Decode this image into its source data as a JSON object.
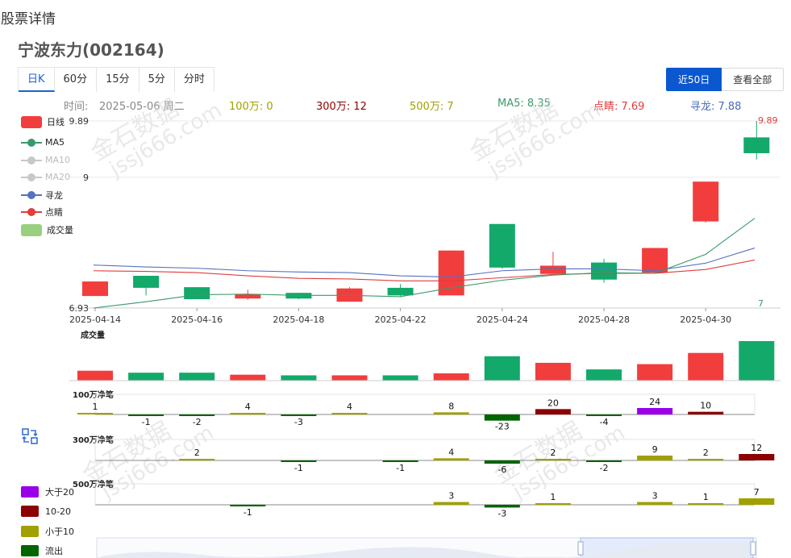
{
  "page": {
    "title": "股票详情",
    "stock_title": "宁波东力(002164)"
  },
  "period_tabs": [
    "日K",
    "60分",
    "15分",
    "5分",
    "分时"
  ],
  "range_buttons": [
    "近50日",
    "查看全部"
  ],
  "info_bar": {
    "time_label": "时间:",
    "time_value": "2025-05-06 周二",
    "items": [
      {
        "text": "100万: 0",
        "color": "#a0a000"
      },
      {
        "text": "300万: 12",
        "color": "#8b0000"
      },
      {
        "text": "500万: 7",
        "color": "#a0a000"
      },
      {
        "text": "MA5: 8.35",
        "color": "#3a9a6a"
      },
      {
        "text": "点睛: 7.69",
        "color": "#e03c3c"
      },
      {
        "text": "寻龙: 7.88",
        "color": "#4a6ab8"
      }
    ]
  },
  "legend": [
    {
      "label": "日线",
      "type": "rect",
      "color": "#f23d3d",
      "dim": false
    },
    {
      "label": "MA5",
      "type": "line",
      "color": "#3a9a6a",
      "dim": false
    },
    {
      "label": "MA10",
      "type": "line",
      "color": "#c0c0c0",
      "dim": true
    },
    {
      "label": "MA20",
      "type": "line",
      "color": "#c0c0c0",
      "dim": true
    },
    {
      "label": "寻龙",
      "type": "line",
      "color": "#5572c0",
      "dim": false
    },
    {
      "label": "点睛",
      "type": "line",
      "color": "#e03c3c",
      "dim": false
    },
    {
      "label": "成交量",
      "type": "rect",
      "color": "#98d07e",
      "dim": false
    }
  ],
  "flow_legend": [
    {
      "label": "大于20",
      "color": "#9a00e8"
    },
    {
      "label": "10-20",
      "color": "#8b0000"
    },
    {
      "label": "小于10",
      "color": "#a0a000"
    },
    {
      "label": "流出",
      "color": "#006400"
    }
  ],
  "watermark": "金石数据 jssj666.com",
  "chart_data": {
    "type": "candlestick",
    "price_axis": {
      "min": 6.93,
      "max": 9.89,
      "labels": [
        "9.89",
        "9",
        "6.93"
      ],
      "left_max_label": "9.89",
      "right_max_label": "9.89",
      "right_min_label": "7"
    },
    "x_labels": [
      "2025-04-14",
      "2025-04-16",
      "2025-04-18",
      "2025-04-22",
      "2025-04-24",
      "2025-04-28",
      "2025-04-30"
    ],
    "candles": [
      {
        "o": 7.35,
        "c": 7.12,
        "h": 7.35,
        "l": 7.12,
        "up": true
      },
      {
        "o": 7.25,
        "c": 7.44,
        "h": 7.44,
        "l": 7.13,
        "up": false
      },
      {
        "o": 7.07,
        "c": 7.26,
        "h": 7.26,
        "l": 7.07,
        "up": false
      },
      {
        "o": 7.15,
        "c": 7.08,
        "h": 7.22,
        "l": 7.06,
        "up": true
      },
      {
        "o": 7.08,
        "c": 7.17,
        "h": 7.17,
        "l": 7.07,
        "up": false
      },
      {
        "o": 7.24,
        "c": 7.03,
        "h": 7.26,
        "l": 7.03,
        "up": true
      },
      {
        "o": 7.25,
        "c": 7.13,
        "h": 7.31,
        "l": 7.11,
        "up": false
      },
      {
        "o": 7.84,
        "c": 7.13,
        "h": 7.84,
        "l": 7.13,
        "up": true
      },
      {
        "o": 7.57,
        "c": 8.26,
        "h": 8.26,
        "l": 7.55,
        "up": false
      },
      {
        "o": 7.6,
        "c": 7.47,
        "h": 7.82,
        "l": 7.47,
        "up": true
      },
      {
        "o": 7.38,
        "c": 7.65,
        "h": 7.71,
        "l": 7.33,
        "up": false
      },
      {
        "o": 7.88,
        "c": 7.49,
        "h": 7.88,
        "l": 7.49,
        "up": true
      },
      {
        "o": 8.93,
        "c": 8.3,
        "h": 8.93,
        "l": 8.28,
        "up": true
      },
      {
        "o": 9.38,
        "c": 9.63,
        "h": 9.89,
        "l": 9.28,
        "up": false
      }
    ],
    "ma5": [
      6.93,
      7.03,
      7.14,
      7.15,
      7.13,
      7.13,
      7.11,
      7.25,
      7.37,
      7.45,
      7.49,
      7.48,
      7.78,
      8.35
    ],
    "xunlong": [
      7.61,
      7.58,
      7.56,
      7.52,
      7.5,
      7.49,
      7.44,
      7.42,
      7.52,
      7.55,
      7.55,
      7.52,
      7.64,
      7.88
    ],
    "dianjing": [
      7.52,
      7.51,
      7.49,
      7.44,
      7.4,
      7.39,
      7.36,
      7.36,
      7.41,
      7.46,
      7.48,
      7.48,
      7.54,
      7.69
    ],
    "volume": {
      "label": "成交量",
      "values": [
        15,
        12,
        12,
        9,
        8,
        8,
        8,
        11,
        37,
        27,
        17,
        25,
        42,
        60
      ],
      "up": [
        true,
        false,
        false,
        true,
        false,
        true,
        false,
        true,
        false,
        true,
        false,
        true,
        true,
        false
      ]
    },
    "flow_100": {
      "label": "100万净笔",
      "values": [
        1,
        -1,
        -2,
        4,
        -3,
        4,
        null,
        8,
        -23,
        20,
        -4,
        24,
        10,
        null
      ],
      "max": 24
    },
    "flow_300": {
      "label": "300万净笔",
      "values": [
        null,
        null,
        2,
        null,
        -1,
        null,
        -1,
        4,
        -6,
        2,
        -2,
        9,
        2,
        12
      ],
      "max": 12
    },
    "flow_500": {
      "label": "500万净笔",
      "values": [
        null,
        null,
        null,
        -1,
        null,
        null,
        null,
        3,
        -3,
        1,
        null,
        3,
        1,
        7
      ],
      "max": 7
    }
  }
}
